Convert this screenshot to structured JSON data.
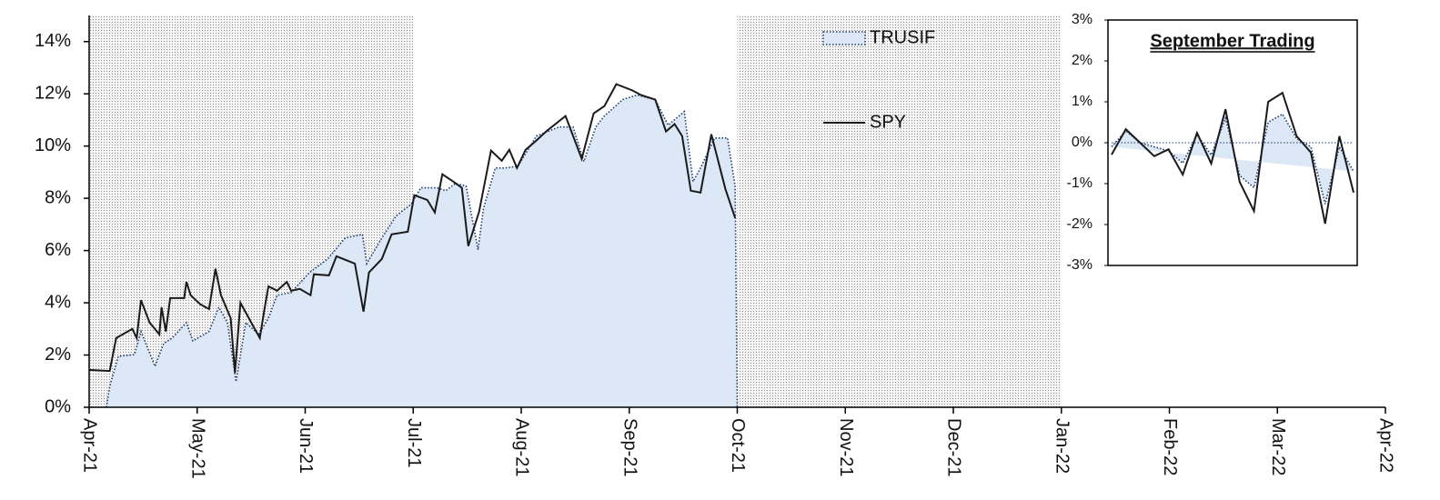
{
  "chart_data": [
    {
      "type": "line",
      "xlim": [
        0,
        12
      ],
      "xticks": [
        {
          "value": 0,
          "label": "Apr-21"
        },
        {
          "value": 1,
          "label": "May-21"
        },
        {
          "value": 2,
          "label": "Jun-21"
        },
        {
          "value": 3,
          "label": "Jul-21"
        },
        {
          "value": 4,
          "label": "Aug-21"
        },
        {
          "value": 5,
          "label": "Sep-21"
        },
        {
          "value": 6,
          "label": "Oct-21"
        },
        {
          "value": 7,
          "label": "Nov-21"
        },
        {
          "value": 8,
          "label": "Dec-21"
        },
        {
          "value": 9,
          "label": "Jan-22"
        },
        {
          "value": 10,
          "label": "Feb-22"
        },
        {
          "value": 11,
          "label": "Mar-22"
        },
        {
          "value": 12,
          "label": "Apr-22"
        }
      ],
      "ylim": [
        0,
        15
      ],
      "yticks": [
        {
          "value": 0,
          "label": "0%"
        },
        {
          "value": 2,
          "label": "2%"
        },
        {
          "value": 4,
          "label": "4%"
        },
        {
          "value": 6,
          "label": "6%"
        },
        {
          "value": 8,
          "label": "8%"
        },
        {
          "value": 10,
          "label": "10%"
        },
        {
          "value": 12,
          "label": "12%"
        },
        {
          "value": 14,
          "label": "14%"
        }
      ],
      "shaded_regions": [
        [
          0,
          3
        ],
        [
          6,
          9
        ]
      ],
      "series": [
        {
          "name": "TRUSIF",
          "style": "area",
          "color": "#1f3a6e",
          "fill": "#dce8f5",
          "x": [
            0.16,
            0.19,
            0.27,
            0.42,
            0.48,
            0.61,
            0.69,
            0.77,
            0.9,
            0.96,
            1.11,
            1.2,
            1.28,
            1.36,
            1.45,
            1.57,
            1.66,
            1.74,
            1.87,
            2.04,
            2.21,
            2.37,
            2.53,
            2.57,
            2.71,
            2.84,
            2.98,
            3.07,
            3.22,
            3.3,
            3.39,
            3.49,
            3.6,
            3.65,
            3.76,
            3.85,
            3.97,
            4.14,
            4.35,
            4.48,
            4.58,
            4.69,
            4.77,
            4.94,
            5.07,
            5.24,
            5.36,
            5.51,
            5.59,
            5.66,
            5.79,
            5.91,
            5.98,
            6.0
          ],
          "values": [
            0,
            0.8,
            1.95,
            2.02,
            2.9,
            1.57,
            2.44,
            2.65,
            3.24,
            2.54,
            2.9,
            3.83,
            3.24,
            0.98,
            3.24,
            2.79,
            3.41,
            4.29,
            4.39,
            5.16,
            5.68,
            6.48,
            6.62,
            5.5,
            6.48,
            7.32,
            7.77,
            8.4,
            8.4,
            8.29,
            8.57,
            8.47,
            6.03,
            7.6,
            9.16,
            9.16,
            9.23,
            10.38,
            10.73,
            10.73,
            9.41,
            10.73,
            11.15,
            11.78,
            11.95,
            11.78,
            10.8,
            11.32,
            8.64,
            9.16,
            10.31,
            10.31,
            8.47,
            0
          ]
        },
        {
          "name": "SPY",
          "style": "line",
          "color": "#1a1a1a",
          "x": [
            0,
            0.19,
            0.25,
            0.4,
            0.44,
            0.48,
            0.56,
            0.65,
            0.67,
            0.71,
            0.75,
            0.88,
            0.9,
            0.94,
            1.03,
            1.11,
            1.17,
            1.22,
            1.31,
            1.35,
            1.4,
            1.58,
            1.62,
            1.66,
            1.74,
            1.83,
            1.87,
            1.95,
            2.05,
            2.08,
            2.22,
            2.29,
            2.46,
            2.54,
            2.59,
            2.71,
            2.8,
            2.95,
            3.01,
            3.13,
            3.2,
            3.27,
            3.37,
            3.45,
            3.51,
            3.61,
            3.72,
            3.82,
            3.89,
            3.96,
            4.04,
            4.14,
            4.23,
            4.41,
            4.56,
            4.67,
            4.77,
            4.88,
            5.03,
            5.11,
            5.24,
            5.34,
            5.42,
            5.49,
            5.57,
            5.66,
            5.76,
            5.89,
            5.98
          ],
          "values": [
            1.43,
            1.39,
            2.65,
            3.0,
            2.65,
            4.1,
            3.24,
            2.79,
            3.83,
            2.9,
            4.18,
            4.18,
            4.8,
            4.29,
            3.94,
            3.76,
            5.3,
            4.29,
            3.41,
            1.32,
            4.0,
            2.65,
            3.69,
            4.63,
            4.46,
            4.8,
            4.46,
            4.53,
            4.29,
            5.09,
            5.05,
            5.78,
            5.5,
            3.66,
            5.16,
            5.68,
            6.62,
            6.72,
            8.12,
            7.94,
            7.46,
            8.92,
            8.64,
            8.4,
            6.17,
            7.49,
            9.83,
            9.44,
            9.86,
            9.16,
            9.86,
            10.21,
            10.56,
            11.15,
            9.51,
            11.25,
            11.53,
            12.37,
            12.13,
            11.95,
            11.78,
            10.56,
            10.84,
            10.38,
            8.29,
            8.22,
            10.45,
            8.36,
            7.25
          ]
        }
      ]
    },
    {
      "type": "line",
      "title": "September Trading",
      "categories": [
        null,
        null,
        null,
        null,
        null,
        null,
        null,
        null,
        null,
        null,
        null,
        null,
        null,
        null,
        null,
        null,
        null,
        null
      ],
      "ylim": [
        -3,
        3
      ],
      "yticks": [
        {
          "value": -3,
          "label": "-3%"
        },
        {
          "value": -2,
          "label": "-2%"
        },
        {
          "value": -1,
          "label": "-1%"
        },
        {
          "value": 0,
          "label": "0%"
        },
        {
          "value": 1,
          "label": "1%"
        },
        {
          "value": 2,
          "label": "2%"
        },
        {
          "value": 3,
          "label": "3%"
        }
      ],
      "series": [
        {
          "name": "TRUSIF",
          "style": "area",
          "color": "#1f3a6e",
          "fill": "#dce8f5",
          "values": [
            -0.1,
            0.29,
            0.0,
            -0.1,
            -0.2,
            -0.5,
            0.2,
            -0.3,
            0.6,
            -0.8,
            -1.1,
            0.5,
            0.7,
            0.1,
            -0.1,
            -1.5,
            -0.1,
            -0.7
          ]
        },
        {
          "name": "SPY",
          "style": "line",
          "color": "#1a1a1a",
          "values": [
            -0.29,
            0.33,
            0.0,
            -0.33,
            -0.16,
            -0.78,
            0.24,
            -0.51,
            0.82,
            -0.96,
            -1.67,
            1.0,
            1.22,
            0.16,
            -0.24,
            -1.98,
            0.16,
            -1.22
          ]
        }
      ]
    }
  ]
}
